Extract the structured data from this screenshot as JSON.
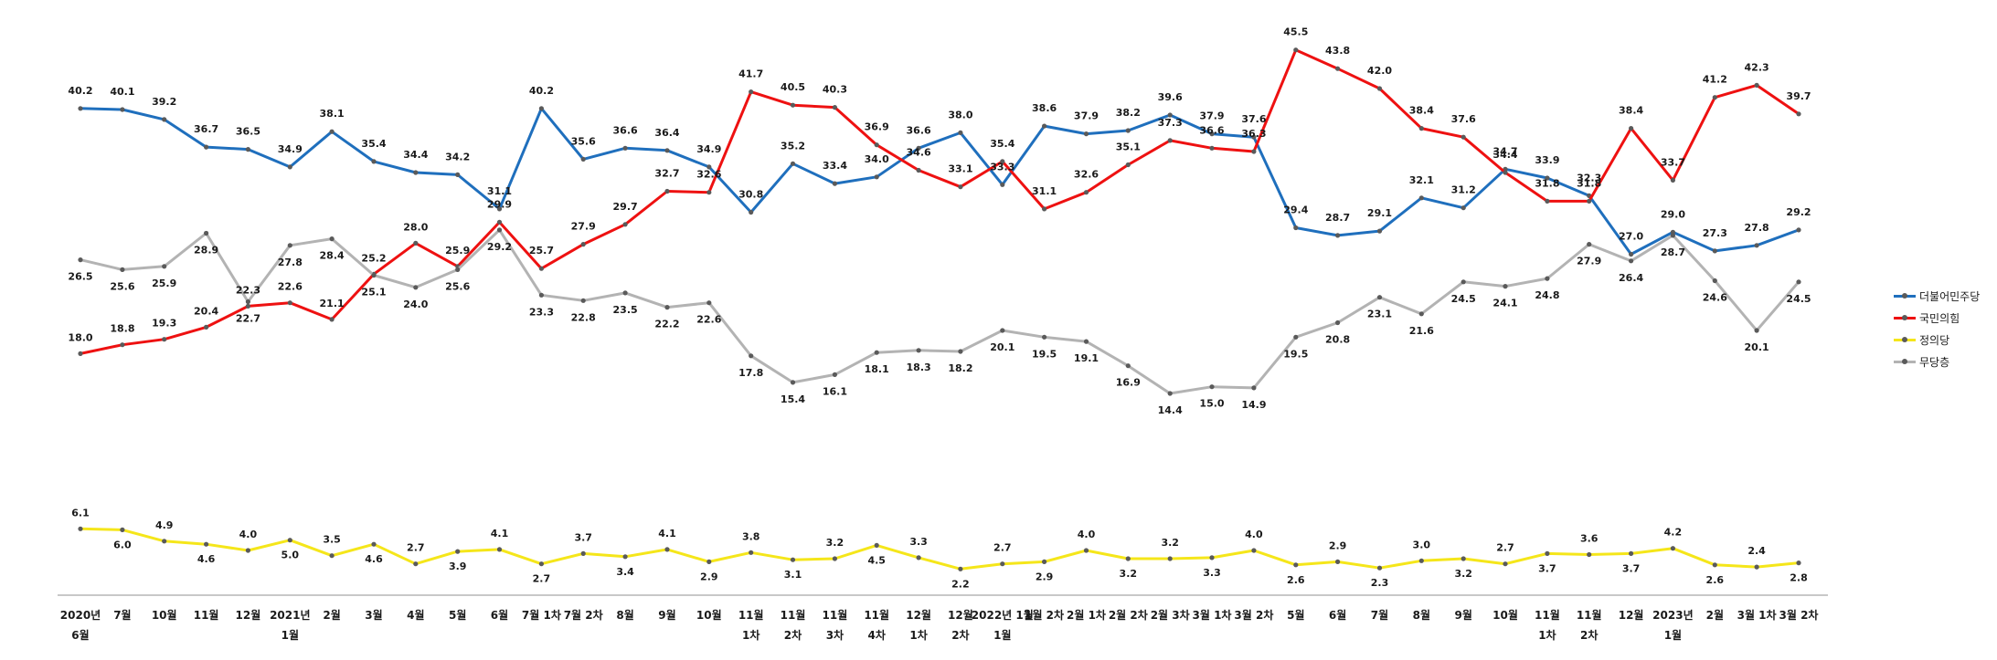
{
  "chart_data": {
    "type": "line",
    "categories": [
      [
        "2020년",
        "6월"
      ],
      [
        "7월"
      ],
      [
        "10월"
      ],
      [
        "11월"
      ],
      [
        "12월"
      ],
      [
        "2021년",
        "1월"
      ],
      [
        "2월"
      ],
      [
        "3월"
      ],
      [
        "4월"
      ],
      [
        "5월"
      ],
      [
        "6월"
      ],
      [
        "7월 1차"
      ],
      [
        "7월 2차"
      ],
      [
        "8월"
      ],
      [
        "9월"
      ],
      [
        "10월"
      ],
      [
        "11월",
        "1차"
      ],
      [
        "11월",
        "2차"
      ],
      [
        "11월",
        "3차"
      ],
      [
        "11월",
        "4차"
      ],
      [
        "12월",
        "1차"
      ],
      [
        "12월",
        "2차"
      ],
      [
        "2022년 1월",
        "1월"
      ],
      [
        "1월 2차"
      ],
      [
        "2월 1차"
      ],
      [
        "2월 2차"
      ],
      [
        "2월 3차"
      ],
      [
        "3월 1차"
      ],
      [
        "3월 2차"
      ],
      [
        "5월"
      ],
      [
        "6월"
      ],
      [
        "7월"
      ],
      [
        "8월"
      ],
      [
        "9월"
      ],
      [
        "10월"
      ],
      [
        "11월",
        "1차"
      ],
      [
        "11월",
        "2차"
      ],
      [
        "12월"
      ],
      [
        "2023년",
        "1월"
      ],
      [
        "2월"
      ],
      [
        "3월 1차"
      ],
      [
        "3월 2차"
      ]
    ],
    "series": [
      {
        "name": "더불어민주당",
        "color": "#1f6fbd",
        "values": [
          40.2,
          40.1,
          39.2,
          36.7,
          36.5,
          34.9,
          38.1,
          35.4,
          34.4,
          34.2,
          31.1,
          40.2,
          35.6,
          36.6,
          36.4,
          34.9,
          30.8,
          35.2,
          33.4,
          34.0,
          36.6,
          38.0,
          33.3,
          38.6,
          37.9,
          38.2,
          39.6,
          37.9,
          37.6,
          29.4,
          28.7,
          29.1,
          32.1,
          31.2,
          34.7,
          33.9,
          32.3,
          27.0,
          29.0,
          27.3,
          27.8,
          29.2
        ]
      },
      {
        "name": "국민의힘",
        "color": "#ee1111",
        "values": [
          18.0,
          18.8,
          19.3,
          20.4,
          22.3,
          22.6,
          21.1,
          25.2,
          28.0,
          25.9,
          29.9,
          25.7,
          27.9,
          29.7,
          32.7,
          32.6,
          41.7,
          40.5,
          40.3,
          36.9,
          34.6,
          33.1,
          35.4,
          31.1,
          32.6,
          35.1,
          37.3,
          36.6,
          36.3,
          45.5,
          43.8,
          42.0,
          38.4,
          37.6,
          34.4,
          31.8,
          31.8,
          38.4,
          33.7,
          41.2,
          42.3,
          39.7
        ]
      },
      {
        "name": "정의당",
        "color": "#f5e61a",
        "values": [
          6.1,
          6.0,
          4.9,
          4.6,
          4.0,
          5.0,
          3.5,
          4.6,
          2.7,
          3.9,
          4.1,
          2.7,
          3.7,
          3.4,
          4.1,
          2.9,
          3.8,
          3.1,
          3.2,
          4.5,
          3.3,
          2.2,
          2.7,
          2.9,
          4.0,
          3.2,
          3.2,
          3.3,
          4.0,
          2.6,
          2.9,
          2.3,
          3.0,
          3.2,
          2.7,
          3.7,
          3.6,
          3.7,
          4.2,
          2.6,
          2.4,
          2.8
        ]
      },
      {
        "name": "무당층",
        "color": "#b3b3b3",
        "values": [
          26.5,
          25.6,
          25.9,
          28.9,
          22.7,
          27.8,
          28.4,
          25.1,
          24.0,
          25.6,
          29.2,
          23.3,
          22.8,
          23.5,
          22.2,
          22.6,
          17.8,
          15.4,
          16.1,
          18.1,
          18.3,
          18.2,
          20.1,
          19.5,
          19.1,
          16.9,
          14.4,
          15.0,
          14.9,
          19.5,
          20.8,
          23.1,
          21.6,
          24.5,
          24.1,
          24.8,
          27.9,
          26.4,
          28.7,
          24.6,
          20.1,
          24.5
        ]
      }
    ],
    "legend": {
      "position": "right"
    },
    "grid": false
  }
}
